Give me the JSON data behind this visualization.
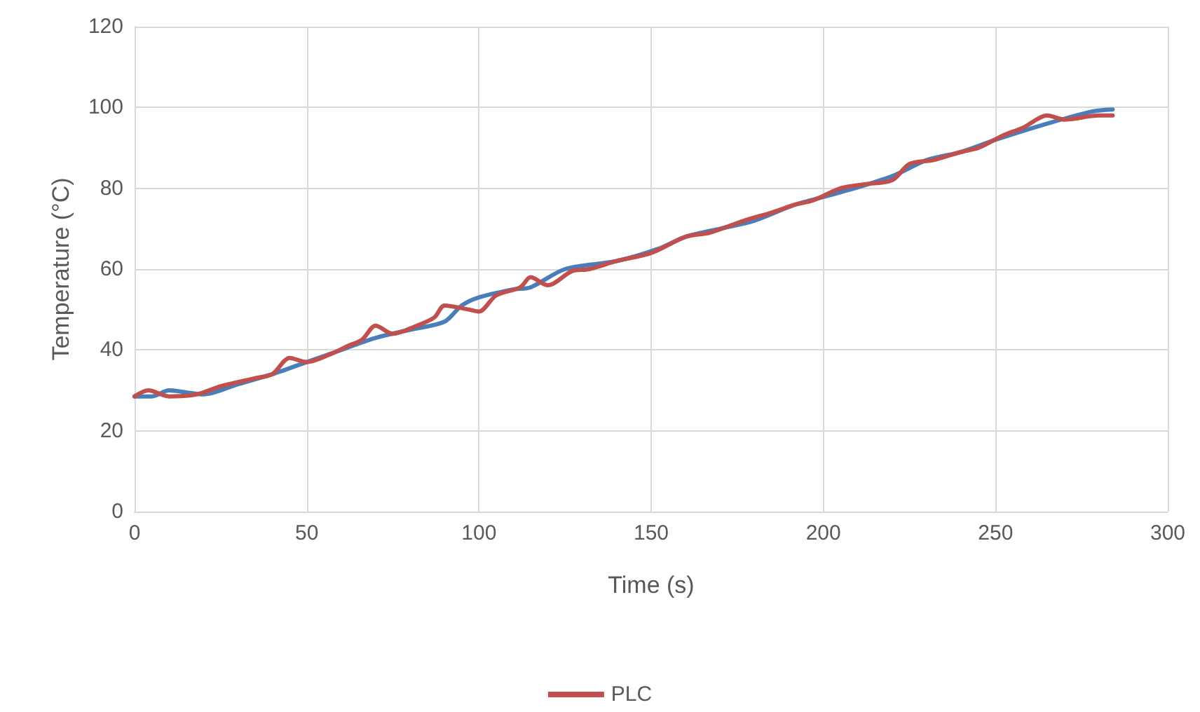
{
  "chart_data": {
    "type": "line",
    "xlabel": "Time (s)",
    "ylabel": "Temperature (°C)",
    "xlim": [
      0,
      300
    ],
    "xticks": [
      0,
      50,
      100,
      150,
      200,
      250,
      300
    ],
    "ylim": [
      0,
      120
    ],
    "yticks": [
      0,
      20,
      40,
      60,
      80,
      100,
      120
    ],
    "grid": true,
    "legend": "bottom",
    "marker": "none",
    "line_style": "solid",
    "series": [
      {
        "color": "#4a7ebb",
        "x": [
          0,
          5,
          10,
          15,
          20,
          30,
          40,
          50,
          60,
          70,
          80,
          90,
          95,
          100,
          110,
          115,
          125,
          140,
          152,
          160,
          170,
          180,
          192,
          205,
          220,
          230,
          240,
          250,
          265,
          278,
          284
        ],
        "values": [
          28.5,
          28.5,
          30,
          29.5,
          29,
          31.5,
          34,
          37,
          40,
          43,
          45,
          47,
          51,
          53,
          55,
          55.5,
          60,
          62,
          65,
          68,
          70,
          72,
          76,
          79,
          83,
          87,
          89,
          92,
          96,
          99,
          99.5
        ]
      },
      {
        "name": "PLC",
        "color": "#c0504d",
        "x": [
          0,
          4,
          10,
          18,
          25,
          35,
          40,
          45,
          50,
          57,
          62,
          66,
          70,
          75,
          82,
          87,
          90,
          97,
          100,
          105,
          112,
          115,
          120,
          127,
          132,
          140,
          150,
          160,
          167,
          177,
          185,
          192,
          197,
          205,
          212,
          220,
          225,
          232,
          240,
          245,
          252,
          258,
          265,
          270,
          280,
          284
        ],
        "values": [
          28.5,
          30,
          28.5,
          29,
          31,
          33,
          34,
          38,
          37,
          39,
          41,
          42.5,
          46,
          44,
          46,
          48,
          51,
          50,
          49.5,
          53.5,
          55.5,
          58,
          56,
          59.5,
          60,
          62,
          64,
          68,
          69,
          72,
          74,
          76,
          77,
          80,
          81,
          82,
          86,
          87,
          89,
          90,
          93,
          95,
          98,
          97,
          98,
          98
        ]
      }
    ]
  }
}
